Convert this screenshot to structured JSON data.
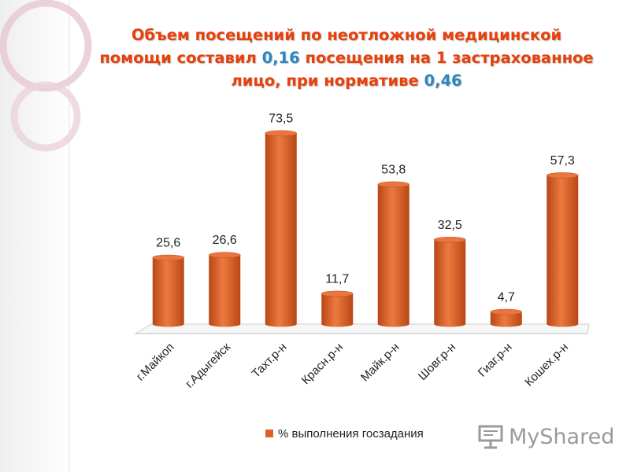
{
  "colors": {
    "accent": "#e8400a",
    "highlight": "#2e86c1",
    "bar": "#d9622b"
  },
  "title": {
    "line1": "Объем посещений по неотложной медицинской",
    "line2_a": "помощи составил ",
    "line2_num": "0,16",
    "line2_b": " посещения на 1 застрахованное",
    "line3_a": "лицо, при нормативе ",
    "line3_num": "0,46"
  },
  "watermark": {
    "text": "MyShared",
    "icon": "projector-screen-icon"
  },
  "chart_data": {
    "type": "bar",
    "categories": [
      "г.Майкоп",
      "г.Адыгейск",
      "Тахт.р-н",
      "Красн.р-н",
      "Майк.р-н",
      "Шовг.р-н",
      "Гиаг.р-н",
      "Кошех.р-н"
    ],
    "series": [
      {
        "name": "% выполнения госзадания",
        "values": [
          25.6,
          26.6,
          73.5,
          11.7,
          53.8,
          32.5,
          4.7,
          57.3
        ]
      }
    ],
    "data_labels": [
      "25,6",
      "26,6",
      "73,5",
      "11,7",
      "53,8",
      "32,5",
      "4,7",
      "57,3"
    ],
    "legend": "bottom",
    "grid": false,
    "ylim": [
      0,
      80
    ]
  }
}
